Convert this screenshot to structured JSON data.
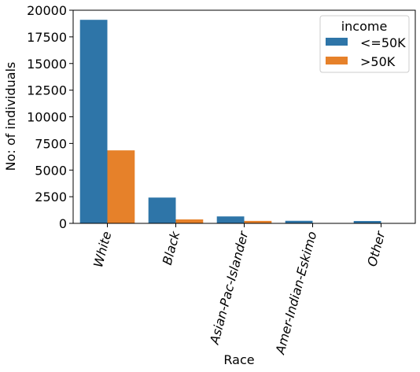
{
  "chart_data": {
    "type": "bar",
    "xlabel": "Race",
    "ylabel": "No: of individuals",
    "ylim": [
      0,
      20000
    ],
    "yticks": [
      0,
      2500,
      5000,
      7500,
      10000,
      12500,
      15000,
      17500,
      20000
    ],
    "categories": [
      "White",
      "Black",
      "Asian-Pac-Islander",
      "Amer-Indian-Eskimo",
      "Other"
    ],
    "series": [
      {
        "name": "<=50K",
        "color": "#2e75a8",
        "values": [
          19100,
          2420,
          650,
          240,
          220
        ]
      },
      {
        "name": ">50K",
        "color": "#e6812a",
        "values": [
          6850,
          370,
          230,
          35,
          25
        ]
      }
    ],
    "legend": {
      "title": "income",
      "position": "top-right"
    },
    "grid": false
  }
}
